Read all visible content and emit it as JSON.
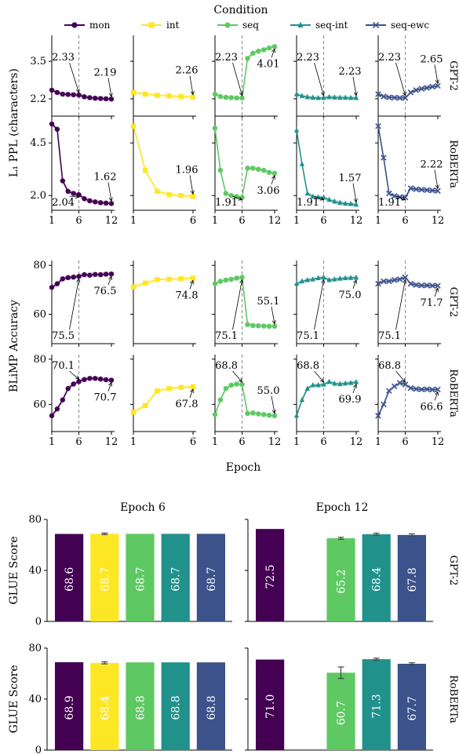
{
  "legend": {
    "title": "Condition",
    "items": [
      {
        "key": "mon",
        "label": "mon",
        "color": "#440154",
        "marker": "circle"
      },
      {
        "key": "int",
        "label": "int",
        "color": "#fde725",
        "marker": "square"
      },
      {
        "key": "seq",
        "label": "seq",
        "color": "#5ec962",
        "marker": "circle"
      },
      {
        "key": "seq-int",
        "label": "seq-int",
        "color": "#21918c",
        "marker": "triangle"
      },
      {
        "key": "seq-ewc",
        "label": "seq-ewc",
        "color": "#3b528b",
        "marker": "x"
      }
    ]
  },
  "chart_data": [
    {
      "type": "line",
      "id": "ppl",
      "ylabel": "L₁ PPL (characters)",
      "xlabel": "",
      "task_switch_epoch": 6,
      "rows": [
        {
          "model": "GPT-2",
          "ylim": [
            1.6,
            4.4
          ],
          "yticks": [
            2.2,
            3.5
          ],
          "series": [
            {
              "key": "mon",
              "x": [
                1,
                2,
                3,
                4,
                5,
                6,
                7,
                8,
                9,
                10,
                11,
                12
              ],
              "y": [
                2.5,
                2.42,
                2.36,
                2.35,
                2.34,
                2.33,
                2.27,
                2.24,
                2.22,
                2.21,
                2.2,
                2.19
              ],
              "note_at": 6,
              "note_text": "2.33",
              "note_at2": 12,
              "note_text2": "2.19"
            },
            {
              "key": "int",
              "x": [
                1,
                2,
                3,
                4,
                5,
                6
              ],
              "y": [
                2.42,
                2.36,
                2.32,
                2.3,
                2.28,
                2.26
              ],
              "note_at": 6,
              "note_text": "2.26"
            },
            {
              "key": "seq",
              "x": [
                1,
                2,
                3,
                4,
                5,
                6,
                7,
                8,
                9,
                10,
                11,
                12
              ],
              "y": [
                2.36,
                2.28,
                2.25,
                2.24,
                2.23,
                2.23,
                3.6,
                3.78,
                3.85,
                3.9,
                3.96,
                4.01
              ],
              "note_at": 6,
              "note_text": "2.23",
              "note_at2": 12,
              "note_text2": "4.01"
            },
            {
              "key": "seq-int",
              "x": [
                1,
                2,
                3,
                4,
                5,
                6,
                7,
                8,
                9,
                10,
                11,
                12
              ],
              "y": [
                2.36,
                2.3,
                2.26,
                2.24,
                2.23,
                2.23,
                2.26,
                2.25,
                2.24,
                2.24,
                2.23,
                2.23
              ],
              "note_at": 6,
              "note_text": "2.23",
              "note_at2": 12,
              "note_text2": "2.23"
            },
            {
              "key": "seq-ewc",
              "x": [
                1,
                2,
                3,
                4,
                5,
                6,
                7,
                8,
                9,
                10,
                11,
                12
              ],
              "y": [
                2.36,
                2.28,
                2.25,
                2.24,
                2.23,
                2.23,
                2.42,
                2.5,
                2.55,
                2.58,
                2.62,
                2.65
              ],
              "note_at": 6,
              "note_text": "2.23",
              "note_at2": 12,
              "note_text2": "2.65"
            }
          ]
        },
        {
          "model": "RoBERTa",
          "ylim": [
            1.3,
            5.7
          ],
          "yticks": [
            2.0,
            4.5
          ],
          "series": [
            {
              "key": "mon",
              "x": [
                1,
                2,
                3,
                4,
                5,
                6,
                7,
                8,
                9,
                10,
                11,
                12
              ],
              "y": [
                5.4,
                5.15,
                2.7,
                2.2,
                2.1,
                2.04,
                1.85,
                1.75,
                1.7,
                1.66,
                1.64,
                1.62
              ],
              "note_at": 6,
              "note_text": "2.04",
              "note_at2": 12,
              "note_text2": "1.62"
            },
            {
              "key": "int",
              "x": [
                1,
                2,
                3,
                4,
                5,
                6
              ],
              "y": [
                5.3,
                3.2,
                2.2,
                2.05,
                2.0,
                1.96
              ],
              "note_at": 6,
              "note_text": "1.96"
            },
            {
              "key": "seq",
              "x": [
                1,
                2,
                3,
                4,
                5,
                6,
                7,
                8,
                9,
                10,
                11,
                12
              ],
              "y": [
                5.2,
                3.2,
                2.1,
                2.0,
                1.95,
                1.91,
                3.3,
                3.3,
                3.25,
                3.2,
                3.1,
                3.06
              ],
              "note_at": 6,
              "note_text": "1.91",
              "note_at2": 12,
              "note_text2": "3.06"
            },
            {
              "key": "seq-int",
              "x": [
                1,
                2,
                3,
                4,
                5,
                6,
                7,
                8,
                9,
                10,
                11,
                12
              ],
              "y": [
                5.1,
                3.5,
                2.1,
                1.95,
                1.92,
                1.91,
                1.8,
                1.72,
                1.66,
                1.62,
                1.6,
                1.57
              ],
              "note_at": 6,
              "note_text": "1.91",
              "note_at2": 12,
              "note_text2": "1.57"
            },
            {
              "key": "seq-ewc",
              "x": [
                1,
                2,
                3,
                4,
                5,
                6,
                7,
                8,
                9,
                10,
                11,
                12
              ],
              "y": [
                5.3,
                3.8,
                2.1,
                1.98,
                1.93,
                1.91,
                2.35,
                2.3,
                2.28,
                2.26,
                2.24,
                2.22
              ],
              "note_at": 6,
              "note_text": "1.91",
              "note_at2": 12,
              "note_text2": "2.22"
            }
          ]
        }
      ]
    },
    {
      "type": "line",
      "id": "blimp",
      "ylabel": "BLiMP Accuracy",
      "xlabel": "Epoch",
      "task_switch_epoch": 6,
      "rows": [
        {
          "model": "GPT-2",
          "ylim": [
            48,
            82
          ],
          "yticks": [
            60,
            80
          ],
          "series": [
            {
              "key": "mon",
              "x": [
                1,
                2,
                3,
                4,
                5,
                6,
                7,
                8,
                9,
                10,
                11,
                12
              ],
              "y": [
                71,
                72.5,
                74.5,
                75,
                75.2,
                75.5,
                76.2,
                76,
                76.3,
                76.2,
                76.4,
                76.5
              ],
              "note_at": 6,
              "note_text": "75.5",
              "note_at2": 12,
              "note_text2": "76.5"
            },
            {
              "key": "int",
              "x": [
                1,
                2,
                3,
                4,
                5,
                6
              ],
              "y": [
                71.2,
                72.8,
                74.2,
                74.3,
                74.6,
                74.8
              ],
              "note_at": 6,
              "note_text": "74.8"
            },
            {
              "key": "seq",
              "x": [
                1,
                2,
                3,
                4,
                5,
                6,
                7,
                8,
                9,
                10,
                11,
                12
              ],
              "y": [
                72.5,
                73.5,
                74,
                74.3,
                74.8,
                75.1,
                55.8,
                55.4,
                55.3,
                55.2,
                55.1,
                55.1
              ],
              "note_at": 6,
              "note_text": "75.1",
              "note_at2": 12,
              "note_text2": "55.1"
            },
            {
              "key": "seq-int",
              "x": [
                1,
                2,
                3,
                4,
                5,
                6,
                7,
                8,
                9,
                10,
                11,
                12
              ],
              "y": [
                72.5,
                73.5,
                74,
                74.3,
                74.8,
                75.1,
                74,
                74.3,
                74.6,
                74.8,
                74.9,
                75.0
              ],
              "note_at": 6,
              "note_text": "75.1",
              "note_at2": 12,
              "note_text2": "75.0"
            },
            {
              "key": "seq-ewc",
              "x": [
                1,
                2,
                3,
                4,
                5,
                6,
                7,
                8,
                9,
                10,
                11,
                12
              ],
              "y": [
                72.5,
                73.5,
                73.5,
                74,
                74.3,
                75.1,
                72.5,
                72,
                71.8,
                71.8,
                71.7,
                71.7
              ],
              "note_at": 6,
              "note_text": "75.1",
              "note_at2": 12,
              "note_text2": "71.7"
            }
          ]
        },
        {
          "model": "RoBERTa",
          "ylim": [
            48,
            82
          ],
          "yticks": [
            60,
            80
          ],
          "series": [
            {
              "key": "mon",
              "x": [
                1,
                2,
                3,
                4,
                5,
                6,
                7,
                8,
                9,
                10,
                11,
                12
              ],
              "y": [
                55,
                58,
                62,
                67,
                69,
                70.1,
                71,
                71.5,
                71.5,
                71.2,
                70.9,
                70.7
              ],
              "note_at": 6,
              "note_text": "70.1",
              "note_at2": 12,
              "note_text2": "70.7"
            },
            {
              "key": "int",
              "x": [
                1,
                2,
                3,
                4,
                5,
                6
              ],
              "y": [
                56.5,
                59.5,
                66,
                67,
                67.5,
                67.8
              ],
              "note_at": 6,
              "note_text": "67.8"
            },
            {
              "key": "seq",
              "x": [
                1,
                2,
                3,
                4,
                5,
                6,
                7,
                8,
                9,
                10,
                11,
                12
              ],
              "y": [
                55.5,
                62,
                67,
                68.5,
                69,
                68.8,
                56,
                56.2,
                55.8,
                55.5,
                55.2,
                55.0
              ],
              "note_at": 6,
              "note_text": "68.8",
              "note_at2": 12,
              "note_text2": "55.0"
            },
            {
              "key": "seq-int",
              "x": [
                1,
                2,
                3,
                4,
                5,
                6,
                7,
                8,
                9,
                10,
                11,
                12
              ],
              "y": [
                55,
                62,
                67,
                68.5,
                68.5,
                68.8,
                70,
                69.2,
                69,
                69.3,
                69.5,
                69.9
              ],
              "note_at": 6,
              "note_text": "68.8",
              "note_at2": 12,
              "note_text2": "69.9"
            },
            {
              "key": "seq-ewc",
              "x": [
                1,
                2,
                3,
                4,
                5,
                6,
                7,
                8,
                9,
                10,
                11,
                12
              ],
              "y": [
                55,
                60,
                66,
                68,
                69.5,
                68.8,
                67.2,
                66.8,
                66.6,
                66.7,
                66.5,
                66.6
              ],
              "note_at": 6,
              "note_text": "68.8",
              "note_at2": 12,
              "note_text2": "66.6"
            }
          ]
        }
      ]
    },
    {
      "type": "bar",
      "id": "glue",
      "ylabel": "GLUE Score",
      "ylim": [
        0,
        80
      ],
      "yticks": [
        0,
        40,
        80
      ],
      "panels": [
        "Epoch 6",
        "Epoch 12"
      ],
      "rows": [
        {
          "model": "GPT-2",
          "epoch6": {
            "values": [
              68.6,
              68.7,
              68.7,
              68.7,
              68.7
            ],
            "labels": [
              "68.6",
              "68.7",
              "68.7",
              "68.7",
              "68.7"
            ],
            "errors": [
              0,
              0.6,
              0,
              0,
              0
            ]
          },
          "epoch12": {
            "values": [
              72.5,
              null,
              65.2,
              68.4,
              67.8
            ],
            "labels": [
              "72.5",
              "",
              "65.2",
              "68.4",
              "67.8"
            ],
            "errors": [
              0,
              0,
              0.8,
              0.8,
              0.9
            ]
          }
        },
        {
          "model": "RoBERTa",
          "epoch6": {
            "values": [
              68.9,
              68.4,
              68.8,
              68.8,
              68.8
            ],
            "labels": [
              "68.9",
              "68.4",
              "68.8",
              "68.8",
              "68.8"
            ],
            "errors": [
              0,
              0.8,
              0,
              0,
              0
            ]
          },
          "epoch12": {
            "values": [
              71.0,
              null,
              60.7,
              71.3,
              67.7
            ],
            "labels": [
              "71.0",
              "",
              "60.7",
              "71.3",
              "67.7"
            ],
            "errors": [
              0,
              0,
              4.5,
              0.8,
              0.8
            ]
          }
        }
      ]
    }
  ]
}
